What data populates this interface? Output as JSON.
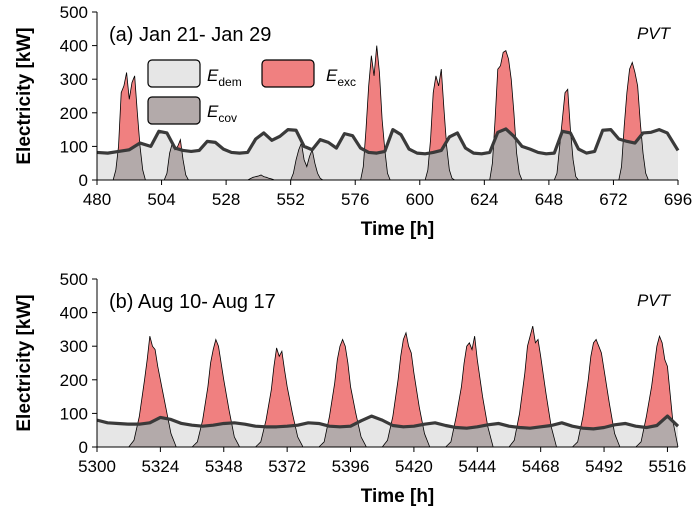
{
  "colors": {
    "demand_fill": "#e6e6e6",
    "excess_fill": "#f08080",
    "covered_fill": "#b3aaaa",
    "line": "#3a3a3a",
    "axis": "#000000"
  },
  "legend": {
    "items": [
      {
        "key": "dem",
        "symbol": "E",
        "sub": "dem",
        "color": "#e6e6e6"
      },
      {
        "key": "exc",
        "symbol": "E",
        "sub": "exc",
        "color": "#f08080"
      },
      {
        "key": "cov",
        "symbol": "E",
        "sub": "cov",
        "color": "#b3aaaa"
      }
    ]
  },
  "chart_data": [
    {
      "type": "area",
      "title": "(a) Jan 21- Jan 29",
      "corner_label": "PVT",
      "xlabel": "Time [h]",
      "ylabel": "Electricity [kW]",
      "xlim": [
        480,
        696
      ],
      "ylim": [
        0,
        500
      ],
      "xticks": [
        480,
        504,
        528,
        552,
        576,
        600,
        624,
        648,
        672,
        696
      ],
      "yticks": [
        0,
        100,
        200,
        300,
        400,
        500
      ],
      "series": [
        {
          "key": "dem",
          "x": [
            480,
            484,
            488,
            492,
            496,
            500,
            503,
            506,
            509,
            512,
            515,
            518,
            521,
            524,
            527,
            530,
            533,
            536,
            539,
            542,
            545,
            548,
            551,
            554,
            557,
            560,
            563,
            566,
            569,
            572,
            575,
            578,
            581,
            584,
            587,
            590,
            593,
            596,
            599,
            602,
            605,
            608,
            611,
            614,
            617,
            620,
            623,
            626,
            629,
            632,
            635,
            638,
            641,
            644,
            647,
            650,
            653,
            656,
            659,
            662,
            665,
            668,
            671,
            674,
            677,
            680,
            683,
            686,
            689,
            692,
            696
          ],
          "values": [
            82,
            80,
            85,
            90,
            110,
            100,
            145,
            140,
            95,
            88,
            85,
            88,
            115,
            112,
            92,
            82,
            80,
            82,
            122,
            140,
            118,
            130,
            150,
            148,
            100,
            90,
            120,
            112,
            95,
            138,
            132,
            95,
            82,
            80,
            85,
            150,
            135,
            92,
            80,
            78,
            82,
            88,
            128,
            140,
            95,
            80,
            78,
            82,
            142,
            152,
            130,
            100,
            92,
            82,
            78,
            80,
            145,
            140,
            92,
            80,
            85,
            148,
            150,
            122,
            115,
            110,
            140,
            142,
            150,
            140,
            88
          ]
        },
        {
          "key": "pv",
          "x": [
            480,
            486,
            487,
            488,
            489,
            490,
            491,
            492,
            493,
            494,
            495,
            496,
            497,
            498,
            504,
            505,
            506,
            507,
            508,
            509,
            510,
            511,
            512,
            513,
            514,
            520,
            528,
            536,
            537,
            538,
            539,
            540,
            541,
            542,
            543,
            544,
            545,
            546,
            547,
            552,
            553,
            554,
            555,
            556,
            557,
            558,
            559,
            560,
            561,
            562,
            563,
            564,
            565,
            566,
            567,
            568,
            576,
            578,
            579,
            580,
            581,
            582,
            583,
            584,
            585,
            586,
            587,
            588,
            589,
            590,
            591,
            600,
            602,
            603,
            604,
            605,
            606,
            607,
            608,
            609,
            610,
            611,
            612,
            613,
            614,
            615,
            624,
            626,
            627,
            628,
            629,
            630,
            631,
            632,
            633,
            634,
            635,
            636,
            637,
            638,
            639,
            640,
            648,
            650,
            651,
            652,
            653,
            654,
            655,
            656,
            657,
            658,
            659,
            660,
            661,
            662,
            663,
            672,
            674,
            675,
            676,
            677,
            678,
            679,
            680,
            681,
            682,
            683,
            684,
            685,
            686,
            687,
            696
          ],
          "values": [
            0,
            0,
            30,
            100,
            260,
            280,
            320,
            240,
            290,
            310,
            200,
            100,
            30,
            0,
            0,
            0,
            20,
            80,
            110,
            90,
            100,
            120,
            60,
            15,
            0,
            0,
            0,
            0,
            4,
            8,
            10,
            12,
            15,
            10,
            8,
            5,
            3,
            0,
            0,
            0,
            20,
            60,
            90,
            110,
            60,
            40,
            70,
            90,
            50,
            20,
            5,
            0,
            0,
            0,
            0,
            0,
            0,
            0,
            40,
            150,
            280,
            370,
            310,
            400,
            320,
            180,
            90,
            20,
            0,
            0,
            0,
            0,
            0,
            30,
            120,
            260,
            310,
            280,
            330,
            210,
            100,
            30,
            5,
            0,
            0,
            0,
            0,
            0,
            50,
            180,
            330,
            340,
            380,
            385,
            360,
            300,
            200,
            80,
            20,
            0,
            0,
            0,
            0,
            0,
            20,
            100,
            180,
            260,
            270,
            150,
            60,
            10,
            0,
            0,
            0,
            0,
            0,
            0,
            0,
            40,
            160,
            260,
            330,
            350,
            320,
            280,
            170,
            80,
            20,
            0,
            0,
            0,
            0
          ]
        }
      ]
    },
    {
      "type": "area",
      "title": "(b) Aug 10- Aug 17",
      "corner_label": "PVT",
      "xlabel": "Time [h]",
      "ylabel": "Electricity [kW]",
      "xlim": [
        5300,
        5520
      ],
      "ylim": [
        0,
        500
      ],
      "xticks": [
        5300,
        5324,
        5348,
        5372,
        5396,
        5420,
        5444,
        5468,
        5492,
        5516
      ],
      "yticks": [
        0,
        100,
        200,
        300,
        400,
        500
      ],
      "series": [
        {
          "key": "dem",
          "x": [
            5300,
            5304,
            5308,
            5312,
            5316,
            5320,
            5324,
            5328,
            5332,
            5336,
            5340,
            5344,
            5348,
            5352,
            5356,
            5360,
            5364,
            5368,
            5372,
            5376,
            5380,
            5384,
            5388,
            5392,
            5396,
            5400,
            5404,
            5408,
            5412,
            5416,
            5420,
            5424,
            5428,
            5432,
            5436,
            5440,
            5444,
            5448,
            5452,
            5456,
            5460,
            5464,
            5468,
            5472,
            5476,
            5480,
            5484,
            5488,
            5492,
            5496,
            5500,
            5504,
            5508,
            5512,
            5516,
            5520
          ],
          "values": [
            80,
            72,
            70,
            68,
            68,
            72,
            88,
            82,
            70,
            65,
            62,
            65,
            70,
            72,
            68,
            62,
            60,
            60,
            62,
            65,
            72,
            70,
            62,
            60,
            62,
            78,
            92,
            80,
            64,
            60,
            62,
            68,
            72,
            64,
            58,
            56,
            60,
            66,
            70,
            62,
            58,
            56,
            60,
            64,
            72,
            62,
            56,
            54,
            58,
            66,
            70,
            62,
            58,
            64,
            92,
            62
          ]
        },
        {
          "key": "pv",
          "x": [
            5300,
            5312,
            5314,
            5316,
            5318,
            5319,
            5320,
            5321,
            5322,
            5323,
            5324,
            5326,
            5328,
            5330,
            5336,
            5338,
            5340,
            5342,
            5343,
            5344,
            5345,
            5346,
            5347,
            5348,
            5350,
            5352,
            5354,
            5360,
            5362,
            5364,
            5366,
            5367,
            5368,
            5369,
            5370,
            5371,
            5372,
            5374,
            5376,
            5378,
            5384,
            5386,
            5388,
            5390,
            5391,
            5392,
            5393,
            5394,
            5395,
            5396,
            5398,
            5400,
            5402,
            5408,
            5410,
            5412,
            5414,
            5415,
            5416,
            5417,
            5418,
            5419,
            5420,
            5422,
            5424,
            5426,
            5432,
            5434,
            5436,
            5438,
            5439,
            5440,
            5441,
            5442,
            5443,
            5444,
            5446,
            5448,
            5450,
            5456,
            5458,
            5460,
            5462,
            5463,
            5464,
            5465,
            5466,
            5467,
            5468,
            5470,
            5472,
            5474,
            5480,
            5482,
            5484,
            5486,
            5487,
            5488,
            5489,
            5490,
            5491,
            5492,
            5494,
            5496,
            5498,
            5504,
            5506,
            5508,
            5510,
            5511,
            5512,
            5513,
            5514,
            5515,
            5516,
            5518,
            5520
          ],
          "values": [
            0,
            0,
            20,
            90,
            200,
            260,
            330,
            300,
            290,
            240,
            200,
            120,
            40,
            0,
            0,
            15,
            80,
            180,
            250,
            290,
            320,
            300,
            250,
            200,
            110,
            30,
            0,
            0,
            15,
            80,
            170,
            240,
            295,
            270,
            285,
            230,
            180,
            100,
            30,
            0,
            0,
            15,
            90,
            190,
            260,
            300,
            320,
            300,
            250,
            180,
            100,
            30,
            0,
            0,
            20,
            90,
            200,
            270,
            320,
            340,
            300,
            280,
            220,
            120,
            40,
            0,
            0,
            15,
            90,
            180,
            250,
            300,
            310,
            290,
            330,
            260,
            150,
            60,
            0,
            0,
            20,
            100,
            220,
            300,
            330,
            360,
            310,
            320,
            270,
            160,
            60,
            0,
            0,
            15,
            90,
            200,
            270,
            310,
            320,
            300,
            280,
            230,
            130,
            40,
            0,
            0,
            15,
            90,
            180,
            240,
            300,
            330,
            310,
            260,
            240,
            80,
            0
          ]
        }
      ]
    }
  ]
}
